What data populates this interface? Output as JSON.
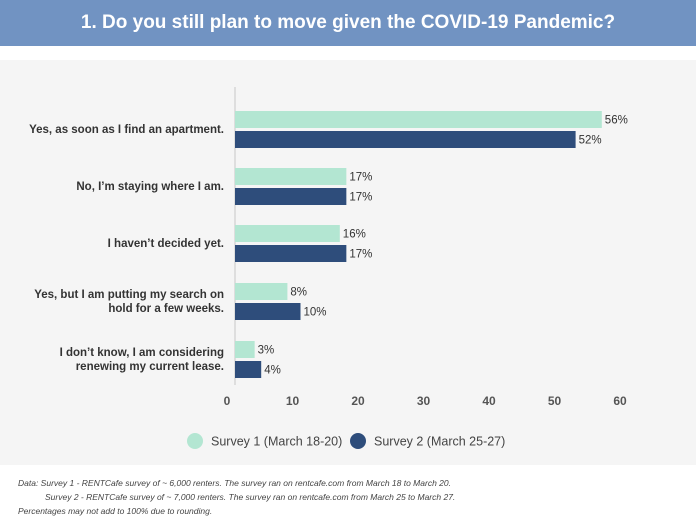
{
  "header": {
    "title": "1. Do you still plan to move given the COVID-19 Pandemic?"
  },
  "chart_data": {
    "type": "bar",
    "orientation": "horizontal",
    "title": "1. Do you still plan to move given the COVID-19 Pandemic?",
    "categories": [
      [
        "Yes, as soon as I find an apartment."
      ],
      [
        "No, I’m staying where I am."
      ],
      [
        "I haven’t decided yet."
      ],
      [
        "Yes, but I am putting my search on",
        "hold for a few weeks."
      ],
      [
        "I don’t know, I am considering",
        "renewing my current lease."
      ]
    ],
    "series": [
      {
        "name": "Survey 1 (March 18-20)",
        "values": [
          56,
          17,
          16,
          8,
          3
        ],
        "labels": [
          "56%",
          "17%",
          "16%",
          "8%",
          "3%"
        ],
        "color": "#b3e6d2"
      },
      {
        "name": "Survey 2 (March 25-27)",
        "values": [
          52,
          17,
          17,
          10,
          4
        ],
        "labels": [
          "52%",
          "17%",
          "17%",
          "10%",
          "4%"
        ],
        "color": "#2e4d7b"
      }
    ],
    "xlim": [
      0,
      60
    ],
    "xticks": [
      "0",
      "10",
      "20",
      "30",
      "40",
      "50",
      "60"
    ],
    "grid": false,
    "legend_position": "bottom"
  },
  "footnotes": {
    "line1": "Data: Survey 1 - RENTCafe survey of ~ 6,000 renters. The survey ran on rentcafe.com from March 18 to March 20.",
    "line2": "Survey 2 - RENTCafe survey of ~ 7,000 renters. The survey ran on rentcafe.com from March 25 to March 27.",
    "line3": "Percentages may not add to 100% due to rounding."
  }
}
